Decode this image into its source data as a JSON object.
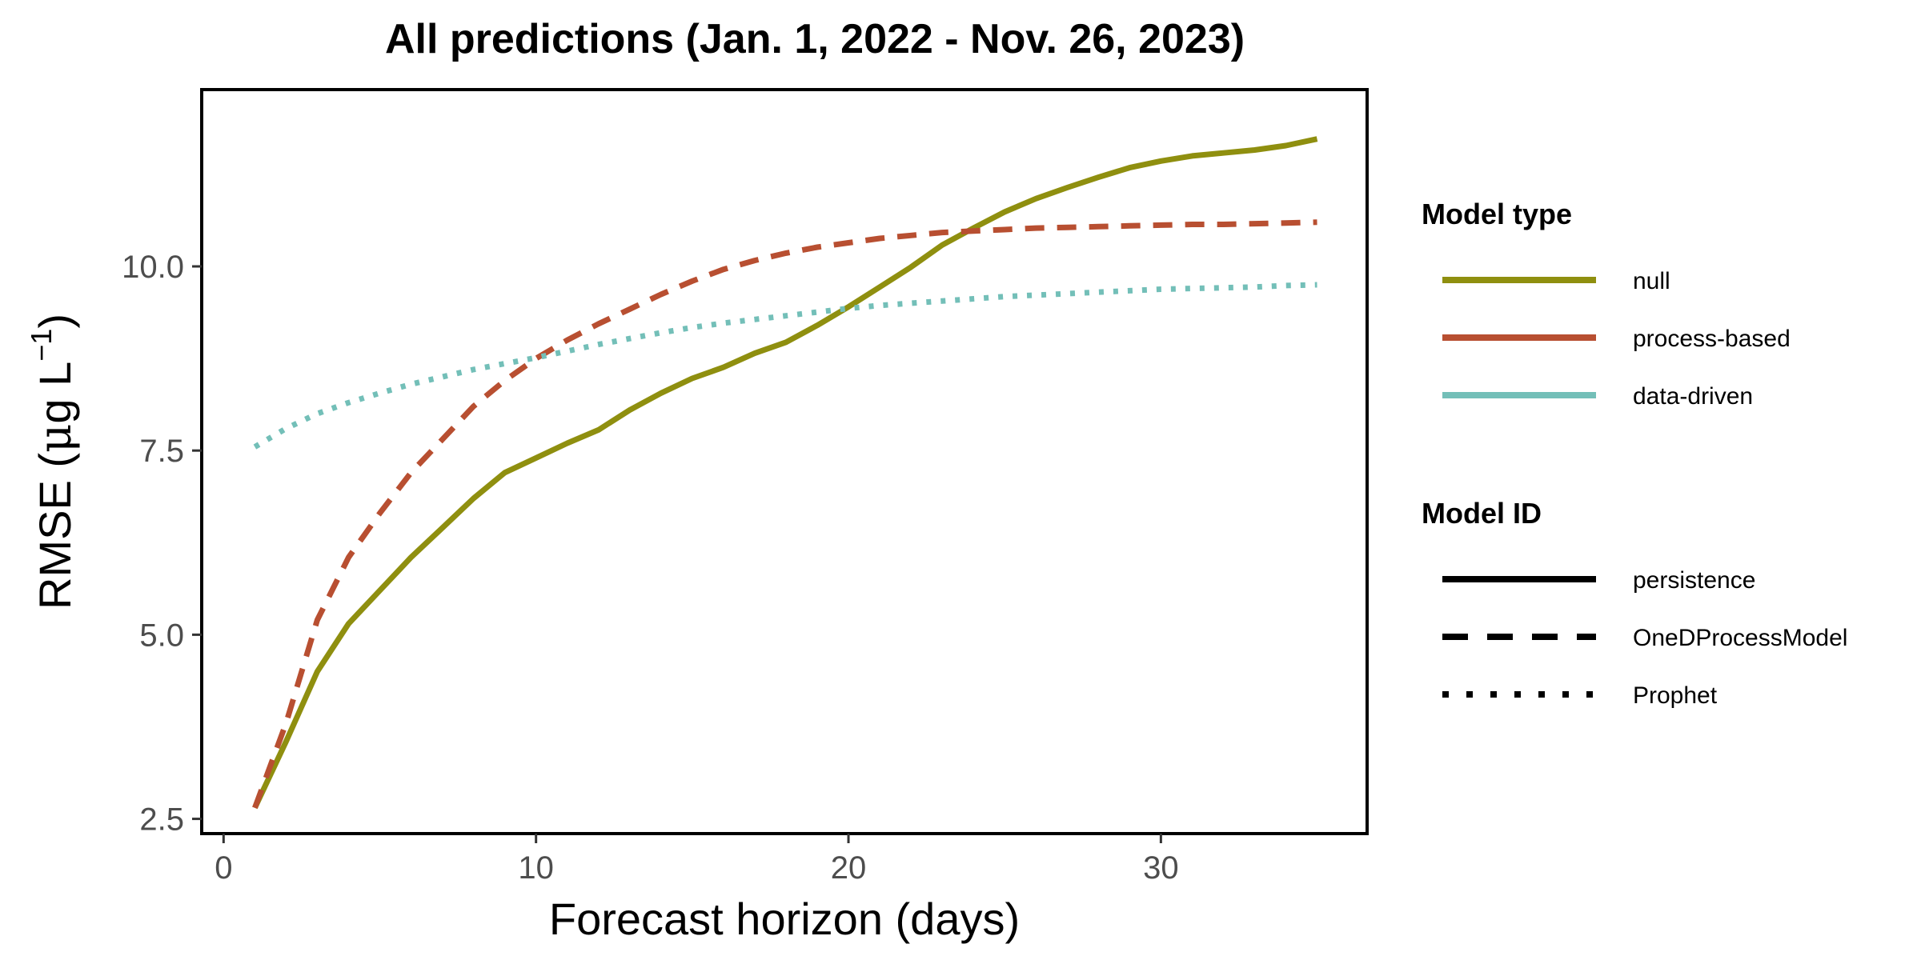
{
  "chart_data": {
    "type": "line",
    "title": "All predictions (Jan. 1, 2022 - Nov. 26, 2023)",
    "xlabel": "Forecast horizon (days)",
    "ylabel": {
      "main": "RMSE (",
      "mu": "μ",
      "unit": "g L",
      "sup": "−1",
      "close": ")"
    },
    "xlim": [
      -0.7,
      36.6
    ],
    "ylim": [
      2.3,
      12.4
    ],
    "x_ticks": [
      0,
      10,
      20,
      30
    ],
    "x_tick_labels": [
      "0",
      "10",
      "20",
      "30"
    ],
    "y_ticks": [
      2.5,
      5.0,
      7.5,
      10.0
    ],
    "y_tick_labels": [
      "2.5",
      "5.0",
      "7.5",
      "10.0"
    ],
    "grid": false,
    "legend_position": "right",
    "series": [
      {
        "model_type": "null",
        "model_id": "persistence",
        "color": "#8F8F0F",
        "linetype": "solid",
        "x": [
          1,
          2,
          3,
          4,
          5,
          6,
          7,
          8,
          9,
          10,
          11,
          12,
          13,
          14,
          15,
          16,
          17,
          18,
          19,
          20,
          21,
          22,
          23,
          24,
          25,
          26,
          27,
          28,
          29,
          30,
          31,
          32,
          33,
          34,
          35
        ],
        "values": [
          2.65,
          3.55,
          4.5,
          5.15,
          5.6,
          6.05,
          6.45,
          6.85,
          7.2,
          7.4,
          7.6,
          7.78,
          8.05,
          8.28,
          8.48,
          8.63,
          8.82,
          8.97,
          9.2,
          9.45,
          9.72,
          9.99,
          10.29,
          10.52,
          10.74,
          10.92,
          11.07,
          11.21,
          11.34,
          11.43,
          11.5,
          11.54,
          11.58,
          11.64,
          11.73
        ]
      },
      {
        "model_type": "process-based",
        "model_id": "OneDProcessModel",
        "color": "#B84F31",
        "linetype": "dashed",
        "x": [
          1,
          2,
          3,
          4,
          5,
          6,
          7,
          8,
          9,
          10,
          11,
          12,
          13,
          14,
          15,
          16,
          17,
          18,
          19,
          20,
          21,
          22,
          23,
          24,
          25,
          26,
          27,
          28,
          29,
          30,
          31,
          32,
          33,
          34,
          35
        ],
        "values": [
          2.65,
          3.8,
          5.2,
          6.05,
          6.65,
          7.2,
          7.65,
          8.1,
          8.45,
          8.75,
          9.0,
          9.22,
          9.42,
          9.62,
          9.8,
          9.96,
          10.08,
          10.18,
          10.26,
          10.32,
          10.38,
          10.42,
          10.46,
          10.48,
          10.5,
          10.52,
          10.53,
          10.54,
          10.55,
          10.56,
          10.57,
          10.57,
          10.58,
          10.59,
          10.6
        ]
      },
      {
        "model_type": "data-driven",
        "model_id": "Prophet",
        "color": "#73BFB8",
        "linetype": "dotted",
        "x": [
          1,
          2,
          3,
          4,
          5,
          6,
          7,
          8,
          9,
          10,
          11,
          12,
          13,
          14,
          15,
          16,
          17,
          18,
          19,
          20,
          21,
          22,
          23,
          24,
          25,
          26,
          27,
          28,
          29,
          30,
          31,
          32,
          33,
          34,
          35
        ],
        "values": [
          7.55,
          7.8,
          8.0,
          8.15,
          8.28,
          8.4,
          8.5,
          8.6,
          8.68,
          8.76,
          8.85,
          8.94,
          9.02,
          9.1,
          9.17,
          9.23,
          9.28,
          9.33,
          9.38,
          9.43,
          9.47,
          9.5,
          9.53,
          9.56,
          9.59,
          9.61,
          9.63,
          9.65,
          9.67,
          9.69,
          9.7,
          9.71,
          9.72,
          9.74,
          9.75
        ]
      }
    ],
    "legend": {
      "type_title": "Model type",
      "type_items": [
        {
          "label": "null",
          "color": "#8F8F0F"
        },
        {
          "label": "process-based",
          "color": "#B84F31"
        },
        {
          "label": "data-driven",
          "color": "#73BFB8"
        }
      ],
      "id_title": "Model ID",
      "id_items": [
        {
          "label": "persistence",
          "linetype": "solid"
        },
        {
          "label": "OneDProcessModel",
          "linetype": "dashed"
        },
        {
          "label": "Prophet",
          "linetype": "dotted"
        }
      ]
    }
  }
}
